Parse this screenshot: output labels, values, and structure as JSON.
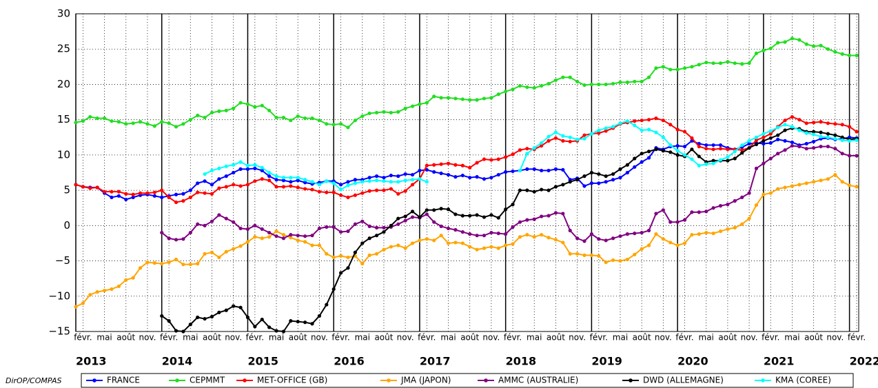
{
  "chart_data": {
    "type": "line",
    "source": "DirOP/COMPAS",
    "x": [
      "2013-01",
      "2013-02",
      "2013-03",
      "2013-04",
      "2013-05",
      "2013-06",
      "2013-07",
      "2013-08",
      "2013-09",
      "2013-10",
      "2013-11",
      "2013-12",
      "2014-01",
      "2014-02",
      "2014-03",
      "2014-04",
      "2014-05",
      "2014-06",
      "2014-07",
      "2014-08",
      "2014-09",
      "2014-10",
      "2014-11",
      "2014-12",
      "2015-01",
      "2015-02",
      "2015-03",
      "2015-04",
      "2015-05",
      "2015-06",
      "2015-07",
      "2015-08",
      "2015-09",
      "2015-10",
      "2015-11",
      "2015-12",
      "2016-01",
      "2016-02",
      "2016-03",
      "2016-04",
      "2016-05",
      "2016-06",
      "2016-07",
      "2016-08",
      "2016-09",
      "2016-10",
      "2016-11",
      "2016-12",
      "2017-01",
      "2017-02",
      "2017-03",
      "2017-04",
      "2017-05",
      "2017-06",
      "2017-07",
      "2017-08",
      "2017-09",
      "2017-10",
      "2017-11",
      "2017-12",
      "2018-01",
      "2018-02",
      "2018-03",
      "2018-04",
      "2018-05",
      "2018-06",
      "2018-07",
      "2018-08",
      "2018-09",
      "2018-10",
      "2018-11",
      "2018-12",
      "2019-01",
      "2019-02",
      "2019-03",
      "2019-04",
      "2019-05",
      "2019-06",
      "2019-07",
      "2019-08",
      "2019-09",
      "2019-10",
      "2019-11",
      "2019-12",
      "2020-01",
      "2020-02",
      "2020-03",
      "2020-04",
      "2020-05",
      "2020-06",
      "2020-07",
      "2020-08",
      "2020-09",
      "2020-10",
      "2020-11",
      "2020-12",
      "2021-01",
      "2021-02",
      "2021-03",
      "2021-04",
      "2021-05",
      "2021-06",
      "2021-07",
      "2021-08",
      "2021-09",
      "2021-10",
      "2021-11",
      "2021-12",
      "2022-01",
      "2022-02"
    ],
    "xlim": [
      "2013-01",
      "2022-02"
    ],
    "xticks": [
      {
        "value": "2013-02",
        "label": "févr."
      },
      {
        "value": "2013-05",
        "label": "mai"
      },
      {
        "value": "2013-08",
        "label": "août"
      },
      {
        "value": "2013-11",
        "label": "nov."
      },
      {
        "value": "2014-02",
        "label": "févr."
      },
      {
        "value": "2014-05",
        "label": "mai"
      },
      {
        "value": "2014-08",
        "label": "août"
      },
      {
        "value": "2014-11",
        "label": "nov."
      },
      {
        "value": "2015-02",
        "label": "févr."
      },
      {
        "value": "2015-05",
        "label": "mai"
      },
      {
        "value": "2015-08",
        "label": "août"
      },
      {
        "value": "2015-11",
        "label": "nov."
      },
      {
        "value": "2016-02",
        "label": "févr."
      },
      {
        "value": "2016-05",
        "label": "mai"
      },
      {
        "value": "2016-08",
        "label": "août"
      },
      {
        "value": "2016-11",
        "label": "nov."
      },
      {
        "value": "2017-02",
        "label": "févr."
      },
      {
        "value": "2017-05",
        "label": "mai"
      },
      {
        "value": "2017-08",
        "label": "août"
      },
      {
        "value": "2017-11",
        "label": "nov."
      },
      {
        "value": "2018-02",
        "label": "févr."
      },
      {
        "value": "2018-05",
        "label": "mai"
      },
      {
        "value": "2018-08",
        "label": "août"
      },
      {
        "value": "2018-11",
        "label": "nov."
      },
      {
        "value": "2019-02",
        "label": "févr."
      },
      {
        "value": "2019-05",
        "label": "mai"
      },
      {
        "value": "2019-08",
        "label": "août"
      },
      {
        "value": "2019-11",
        "label": "nov."
      },
      {
        "value": "2020-02",
        "label": "févr."
      },
      {
        "value": "2020-05",
        "label": "mai"
      },
      {
        "value": "2020-08",
        "label": "août"
      },
      {
        "value": "2020-11",
        "label": "nov."
      },
      {
        "value": "2021-02",
        "label": "févr."
      },
      {
        "value": "2021-05",
        "label": "mai"
      },
      {
        "value": "2021-08",
        "label": "août"
      },
      {
        "value": "2021-11",
        "label": "nov."
      },
      {
        "value": "2022-02",
        "label": "févr."
      }
    ],
    "year_ticks": [
      {
        "value": "2013-01",
        "label": "2013"
      },
      {
        "value": "2014-01",
        "label": "2014"
      },
      {
        "value": "2015-01",
        "label": "2015"
      },
      {
        "value": "2016-01",
        "label": "2016"
      },
      {
        "value": "2017-01",
        "label": "2017"
      },
      {
        "value": "2018-01",
        "label": "2018"
      },
      {
        "value": "2019-01",
        "label": "2019"
      },
      {
        "value": "2020-01",
        "label": "2020"
      },
      {
        "value": "2021-01",
        "label": "2021"
      },
      {
        "value": "2022-01",
        "label": "2022"
      }
    ],
    "ylim": [
      -15,
      30
    ],
    "yticks": [
      {
        "value": -15,
        "label": "−15"
      },
      {
        "value": -10,
        "label": "−10"
      },
      {
        "value": -5,
        "label": "−5"
      },
      0,
      5,
      10,
      15,
      20,
      25,
      30
    ],
    "grid": true,
    "series": [
      {
        "name": "FRANCE",
        "color": "#0000ff",
        "values": [
          5.8,
          5.5,
          5.4,
          5.4,
          4.6,
          4.0,
          4.2,
          3.7,
          4.0,
          4.3,
          4.4,
          4.2,
          4.0,
          4.2,
          4.4,
          4.5,
          5.0,
          6.0,
          6.3,
          5.8,
          6.6,
          7.0,
          7.5,
          8.0,
          8.0,
          8.1,
          7.8,
          7.0,
          6.5,
          6.4,
          6.2,
          6.4,
          6.1,
          5.9,
          6.1,
          6.3,
          6.3,
          5.8,
          6.2,
          6.5,
          6.5,
          6.8,
          7.0,
          6.8,
          7.1,
          7.0,
          7.3,
          7.2,
          7.8,
          7.9,
          7.6,
          7.4,
          7.2,
          6.9,
          7.1,
          6.8,
          6.9,
          6.6,
          6.8,
          7.2,
          7.6,
          7.7,
          7.8,
          8.0,
          8.0,
          7.8,
          7.8,
          8.0,
          7.9,
          6.5,
          6.7,
          5.6,
          6.0,
          6.0,
          6.2,
          6.5,
          6.8,
          7.5,
          8.3,
          9.0,
          9.6,
          11.0,
          10.8,
          11.2,
          11.3,
          11.2,
          12.0,
          11.6,
          11.4,
          11.4,
          11.4,
          11.0,
          10.8,
          11.1,
          11.6,
          11.7,
          11.6,
          11.7,
          12.2,
          12.0,
          11.8,
          11.4,
          11.6,
          11.9,
          12.3,
          12.4,
          12.2,
          12.3,
          12.5,
          12.4
        ]
      },
      {
        "name": "CEPMMT",
        "color": "#22dd22",
        "values": [
          14.6,
          14.8,
          15.4,
          15.2,
          15.2,
          14.8,
          14.7,
          14.4,
          14.5,
          14.7,
          14.4,
          14.1,
          14.7,
          14.5,
          14.0,
          14.4,
          15.0,
          15.6,
          15.3,
          16.0,
          16.2,
          16.3,
          16.6,
          17.4,
          17.2,
          16.8,
          17.0,
          16.3,
          15.3,
          15.3,
          14.9,
          15.5,
          15.2,
          15.2,
          14.9,
          14.4,
          14.3,
          14.4,
          13.9,
          14.9,
          15.5,
          15.9,
          16.0,
          16.1,
          16.0,
          16.1,
          16.6,
          16.9,
          17.2,
          17.4,
          18.3,
          18.1,
          18.1,
          18.0,
          17.9,
          17.8,
          17.8,
          18.0,
          18.1,
          18.6,
          19.0,
          19.3,
          19.8,
          19.6,
          19.5,
          19.8,
          20.1,
          20.6,
          21.0,
          21.0,
          20.4,
          19.9,
          20.0,
          20.0,
          20.0,
          20.1,
          20.3,
          20.3,
          20.4,
          20.4,
          21.0,
          22.3,
          22.5,
          22.1,
          22.1,
          22.3,
          22.5,
          22.8,
          23.1,
          23.0,
          23.0,
          23.2,
          23.0,
          22.9,
          23.0,
          24.4,
          24.8,
          25.1,
          25.9,
          26.0,
          26.5,
          26.3,
          25.7,
          25.4,
          25.5,
          25.0,
          24.6,
          24.3,
          24.1,
          24.1
        ]
      },
      {
        "name": "MET-OFFICE (GB)",
        "color": "#ff0000",
        "values": [
          5.8,
          5.5,
          5.3,
          5.4,
          4.8,
          4.8,
          4.8,
          4.5,
          4.4,
          4.6,
          4.6,
          4.7,
          5.0,
          4.0,
          3.3,
          3.5,
          4.0,
          4.7,
          4.6,
          4.5,
          5.3,
          5.5,
          5.8,
          5.6,
          5.8,
          6.3,
          6.6,
          6.4,
          5.5,
          5.5,
          5.6,
          5.4,
          5.2,
          5.1,
          4.8,
          4.7,
          4.7,
          4.3,
          4.0,
          4.3,
          4.6,
          4.9,
          5.0,
          5.0,
          5.2,
          4.5,
          4.9,
          5.8,
          6.6,
          8.5,
          8.6,
          8.7,
          8.8,
          8.6,
          8.5,
          8.2,
          8.9,
          9.4,
          9.3,
          9.4,
          9.7,
          10.1,
          10.7,
          10.9,
          10.8,
          11.3,
          12.0,
          12.4,
          12.0,
          11.9,
          12.0,
          12.8,
          13.0,
          13.1,
          13.4,
          13.8,
          14.4,
          14.6,
          14.8,
          14.9,
          15.0,
          15.2,
          14.9,
          14.3,
          13.6,
          13.3,
          12.4,
          11.2,
          10.9,
          10.8,
          10.9,
          10.8,
          10.8,
          10.7,
          11.0,
          12.1,
          12.5,
          13.0,
          14.0,
          14.9,
          15.4,
          15.0,
          14.5,
          14.6,
          14.7,
          14.5,
          14.4,
          14.3,
          14.0,
          13.3
        ]
      },
      {
        "name": "JMA (JAPON)",
        "color": "#ffa500",
        "values": [
          -11.5,
          -11.0,
          -9.8,
          -9.4,
          -9.2,
          -9.0,
          -8.6,
          -7.7,
          -7.4,
          -6.0,
          -5.2,
          -5.3,
          -5.4,
          -5.2,
          -4.8,
          -5.5,
          -5.5,
          -5.4,
          -4.0,
          -3.8,
          -4.5,
          -3.7,
          -3.3,
          -2.9,
          -2.3,
          -1.6,
          -1.8,
          -1.6,
          -0.8,
          -1.3,
          -1.7,
          -2.1,
          -2.3,
          -2.8,
          -2.8,
          -4.0,
          -4.5,
          -4.3,
          -4.5,
          -4.3,
          -5.4,
          -4.2,
          -4.0,
          -3.4,
          -3.0,
          -2.8,
          -3.2,
          -2.5,
          -2.1,
          -1.9,
          -2.1,
          -1.4,
          -2.5,
          -2.4,
          -2.5,
          -3.0,
          -3.4,
          -3.2,
          -3.0,
          -3.2,
          -2.8,
          -2.6,
          -1.6,
          -1.3,
          -1.6,
          -1.3,
          -1.7,
          -2.0,
          -2.4,
          -4.0,
          -4.0,
          -4.2,
          -4.2,
          -4.3,
          -5.2,
          -4.9,
          -5.0,
          -4.8,
          -4.1,
          -3.3,
          -2.8,
          -1.2,
          -1.9,
          -2.4,
          -2.8,
          -2.5,
          -1.3,
          -1.2,
          -1.0,
          -1.1,
          -0.8,
          -0.5,
          -0.3,
          0.2,
          1.0,
          2.9,
          4.4,
          4.6,
          5.2,
          5.4,
          5.6,
          5.8,
          6.0,
          6.2,
          6.4,
          6.6,
          7.2,
          6.2,
          5.7,
          5.5
        ]
      },
      {
        "name": "AMMC (AUSTRALIE)",
        "color": "#800080",
        "values": [
          null,
          null,
          null,
          null,
          null,
          null,
          null,
          null,
          null,
          null,
          null,
          null,
          -1.0,
          -1.8,
          -2.0,
          -1.9,
          -1.0,
          0.2,
          0.0,
          0.6,
          1.5,
          1.0,
          0.5,
          -0.4,
          -0.5,
          0.0,
          -0.5,
          -1.0,
          -1.5,
          -1.8,
          -1.3,
          -1.4,
          -1.5,
          -1.4,
          -0.4,
          -0.2,
          -0.2,
          -0.9,
          -0.8,
          0.2,
          0.6,
          -0.1,
          -0.3,
          -0.3,
          -0.2,
          0.2,
          0.7,
          1.2,
          1.1,
          1.6,
          0.5,
          -0.1,
          -0.4,
          -0.6,
          -0.9,
          -1.2,
          -1.4,
          -1.4,
          -1.0,
          -1.1,
          -1.2,
          -0.2,
          0.5,
          0.8,
          0.9,
          1.3,
          1.4,
          1.8,
          1.7,
          -0.7,
          -1.8,
          -2.2,
          -1.2,
          -1.9,
          -2.1,
          -1.8,
          -1.5,
          -1.2,
          -1.1,
          -1.0,
          -0.7,
          1.7,
          2.2,
          0.5,
          0.5,
          0.8,
          1.9,
          1.9,
          2.0,
          2.5,
          2.8,
          3.0,
          3.5,
          4.0,
          4.6,
          8.1,
          8.8,
          9.5,
          10.2,
          10.7,
          11.3,
          11.2,
          10.9,
          11.0,
          11.2,
          11.2,
          10.9,
          10.2,
          9.9,
          9.9
        ]
      },
      {
        "name": "DWD (ALLEMAGNE)",
        "color": "#000000",
        "values": [
          null,
          null,
          null,
          null,
          null,
          null,
          null,
          null,
          null,
          null,
          null,
          null,
          -12.8,
          -13.5,
          -14.9,
          -15.0,
          -14.0,
          -13.0,
          -13.2,
          -12.9,
          -12.3,
          -12.0,
          -11.4,
          -11.6,
          -13.0,
          -14.3,
          -13.3,
          -14.4,
          -14.9,
          -15.0,
          -13.5,
          -13.6,
          -13.7,
          -13.9,
          -12.8,
          -11.2,
          -9.0,
          -6.7,
          -6.0,
          -3.8,
          -2.5,
          -1.8,
          -1.4,
          -0.9,
          0.0,
          1.0,
          1.3,
          2.0,
          1.2,
          2.2,
          2.2,
          2.4,
          2.3,
          1.6,
          1.4,
          1.4,
          1.5,
          1.2,
          1.5,
          1.1,
          2.3,
          3.0,
          5.0,
          5.0,
          4.8,
          5.1,
          5.0,
          5.5,
          5.8,
          6.2,
          6.5,
          7.0,
          7.5,
          7.3,
          7.0,
          7.3,
          8.0,
          8.6,
          9.5,
          10.2,
          10.5,
          10.8,
          10.6,
          10.4,
          10.0,
          9.8,
          10.8,
          9.8,
          9.0,
          9.2,
          9.2,
          9.2,
          9.5,
          10.3,
          11.0,
          11.5,
          12.0,
          12.4,
          12.8,
          13.5,
          13.8,
          13.7,
          13.3,
          13.3,
          13.2,
          13.0,
          12.8,
          12.5,
          12.2,
          12.3
        ]
      },
      {
        "name": "KMA (COREE)",
        "color": "#00ffff",
        "values": [
          null,
          null,
          null,
          null,
          null,
          null,
          null,
          null,
          null,
          null,
          null,
          null,
          null,
          null,
          null,
          null,
          null,
          null,
          7.3,
          7.8,
          8.1,
          8.4,
          8.6,
          9.0,
          8.5,
          8.6,
          8.2,
          7.5,
          7.0,
          6.8,
          6.8,
          6.8,
          6.5,
          6.2,
          5.8,
          6.3,
          6.0,
          5.1,
          5.7,
          6.0,
          6.2,
          6.3,
          6.4,
          6.3,
          6.2,
          6.2,
          6.4,
          6.5,
          6.6,
          6.2,
          null,
          null,
          null,
          null,
          null,
          null,
          null,
          null,
          null,
          null,
          null,
          null,
          7.8,
          10.2,
          11.0,
          11.7,
          12.6,
          13.2,
          12.7,
          12.5,
          12.2,
          12.3,
          13.0,
          13.5,
          13.8,
          14.0,
          14.5,
          14.8,
          14.2,
          13.5,
          13.6,
          13.2,
          12.5,
          11.4,
          10.6,
          10.0,
          9.4,
          8.5,
          8.7,
          8.8,
          9.3,
          9.7,
          10.5,
          11.4,
          12.0,
          12.5,
          13.0,
          13.4,
          13.9,
          14.3,
          14.0,
          13.5,
          13.1,
          12.9,
          12.6,
          12.5,
          12.3,
          12.1,
          12.0,
          12.1
        ]
      }
    ]
  }
}
